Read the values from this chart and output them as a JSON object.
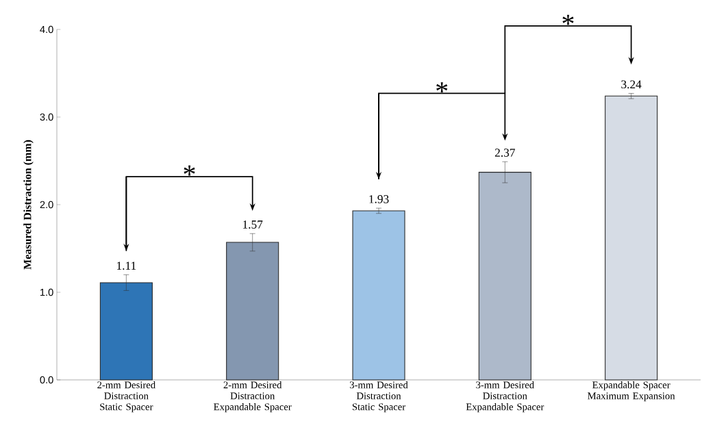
{
  "chart_data": {
    "type": "bar",
    "ylabel": "Measured Distraction (mm)",
    "categories": [
      "2-mm Desired Distraction Static Spacer",
      "2-mm Desired Distraction Expandable Spacer",
      "3-mm Desired Distraction Static Spacer",
      "3-mm Desired Distraction Expandable Spacer",
      "Expandable Spacer Maximum Expansion"
    ],
    "values": [
      1.11,
      1.57,
      1.93,
      2.37,
      3.24
    ],
    "errors": [
      0.09,
      0.1,
      0.03,
      0.12,
      0.03
    ],
    "colors": [
      "#2e75b6",
      "#8497b0",
      "#9dc3e6",
      "#adb9ca",
      "#d6dce5"
    ],
    "ylim": [
      0,
      4
    ],
    "yticks": [
      {
        "value": 0,
        "label": "0.0"
      },
      {
        "value": 1,
        "label": "1.0"
      },
      {
        "value": 2,
        "label": "2.0"
      },
      {
        "value": 3,
        "label": "3.0"
      },
      {
        "value": 4,
        "label": "4.0"
      }
    ],
    "data_labels": true,
    "annotations": [
      "*",
      "*",
      "*"
    ]
  }
}
